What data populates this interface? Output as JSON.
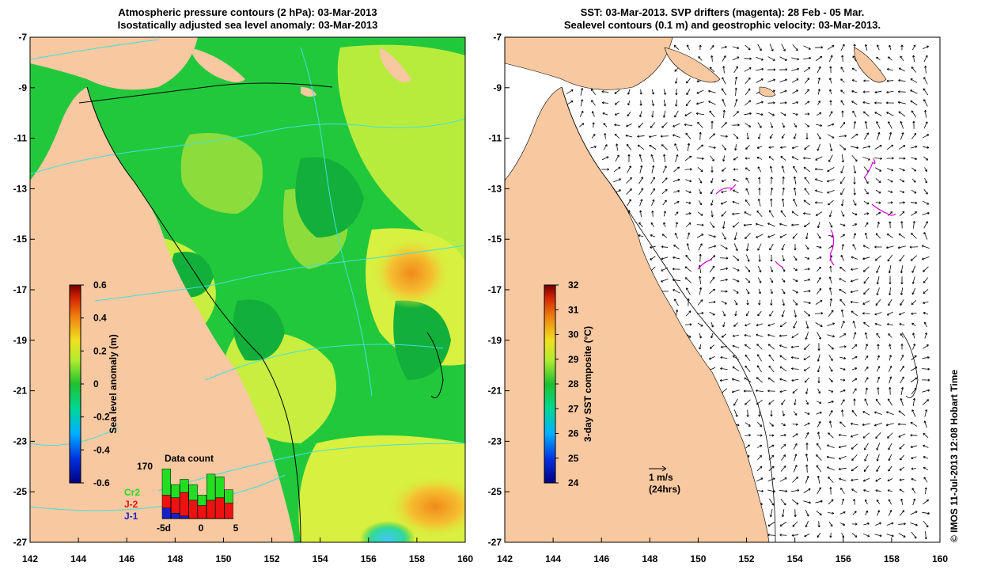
{
  "left_panel": {
    "title_line1": "Atmospheric pressure contours (2 hPa): 03-Mar-2013",
    "title_line2": "Isostatically adjusted sea level anomaly: 03-Mar-2013",
    "colorbar": {
      "label": "Sea level anomaly (m)",
      "ticks": [
        "0.6",
        "0.4",
        "0.2",
        "0",
        "-0.2",
        "-0.4",
        "-0.6"
      ]
    },
    "histogram": {
      "title": "Data count",
      "max_label": "170",
      "x_ticks": [
        "-5d",
        "0",
        "5"
      ],
      "legend": [
        {
          "name": "Cr2",
          "color": "#22dd22"
        },
        {
          "name": "J-2",
          "color": "#ee1111"
        },
        {
          "name": "J-1",
          "color": "#1122cc"
        }
      ],
      "bars": [
        {
          "j1": 0.2,
          "j2": 0.25,
          "cr2": 0.75
        },
        {
          "j1": 0.1,
          "j2": 0.3,
          "cr2": 0.55
        },
        {
          "j1": 0.05,
          "j2": 0.45,
          "cr2": 0.7
        },
        {
          "j1": 0.0,
          "j2": 0.35,
          "cr2": 0.65
        },
        {
          "j1": 0.0,
          "j2": 0.25,
          "cr2": 0.45
        },
        {
          "j1": 0.0,
          "j2": 0.35,
          "cr2": 0.85
        },
        {
          "j1": 0.0,
          "j2": 0.4,
          "cr2": 0.8
        },
        {
          "j1": 0.0,
          "j2": 0.3,
          "cr2": 0.55
        }
      ]
    }
  },
  "right_panel": {
    "title_line1": "SST: 03-Mar-2013. SVP drifters (magenta): 28 Feb - 05 Mar.",
    "title_line2": "Sealevel contours (0.1 m) and geostrophic velocity: 03-Mar-2013.",
    "colorbar": {
      "label": "3-day SST composite (°C)",
      "ticks": [
        "32",
        "31",
        "30",
        "29",
        "28",
        "27",
        "26",
        "25",
        "24"
      ]
    },
    "scale_arrow": {
      "line1": "1 m/s",
      "line2": "(24hrs)"
    }
  },
  "axes": {
    "y_ticks": [
      "-7",
      "-9",
      "-11",
      "-13",
      "-15",
      "-17",
      "-19",
      "-21",
      "-23",
      "-25",
      "-27"
    ],
    "x_ticks": [
      "142",
      "144",
      "146",
      "148",
      "150",
      "152",
      "154",
      "156",
      "158",
      "160"
    ]
  },
  "credit": "© IMOS 11-Jul-2013 12:08 Hobart Time",
  "colors": {
    "land": "#f8c8a0",
    "ocean_green": "#22c83c",
    "ocean_yellow": "#d8f040",
    "ocean_light_green": "#8cdc3c",
    "contour_cyan": "#40e0e0",
    "drifter_magenta": "#dd00dd"
  }
}
